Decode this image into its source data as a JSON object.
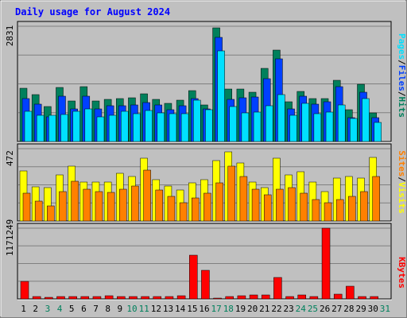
{
  "chart_data": [
    {
      "type": "bar",
      "title": "Daily usage for August 2024",
      "max_label": "2831",
      "ylim": [
        0,
        2831
      ],
      "grid": true,
      "legend": {
        "placement": "right-vertical",
        "items": [
          {
            "label": "Hits",
            "color": "#00805c"
          },
          {
            "label": "/",
            "color": "#000000"
          },
          {
            "label": "Files",
            "color": "#0040ff"
          },
          {
            "label": "/",
            "color": "#000000"
          },
          {
            "label": "Pages",
            "color": "#00e0ff"
          }
        ]
      },
      "categories": [
        "1",
        "2",
        "3",
        "4",
        "5",
        "6",
        "7",
        "8",
        "9",
        "10",
        "11",
        "12",
        "13",
        "14",
        "15",
        "16",
        "17",
        "18",
        "19",
        "20",
        "21",
        "22",
        "23",
        "24",
        "25",
        "26",
        "27",
        "28",
        "29",
        "30",
        "31"
      ],
      "series": [
        {
          "name": "Hits",
          "color": "#00805c",
          "values": [
            1300,
            1150,
            850,
            1330,
            1000,
            1350,
            1000,
            1030,
            1060,
            1080,
            1170,
            1030,
            930,
            1010,
            1240,
            900,
            2790,
            1290,
            1290,
            1210,
            1800,
            2240,
            970,
            1230,
            1060,
            1050,
            1500,
            780,
            1400,
            700,
            0
          ]
        },
        {
          "name": "Files",
          "color": "#0040ff",
          "values": [
            1050,
            910,
            600,
            1120,
            810,
            1120,
            810,
            870,
            880,
            900,
            950,
            900,
            790,
            880,
            1050,
            810,
            2550,
            1040,
            1080,
            1100,
            1550,
            2030,
            800,
            1110,
            910,
            980,
            1350,
            580,
            1210,
            590,
            0
          ]
        },
        {
          "name": "Pages",
          "color": "#00e0ff",
          "values": [
            750,
            640,
            640,
            670,
            740,
            800,
            600,
            650,
            750,
            690,
            760,
            700,
            680,
            680,
            1020,
            780,
            2220,
            850,
            700,
            720,
            880,
            1160,
            640,
            940,
            690,
            730,
            900,
            560,
            1050,
            470,
            0
          ]
        }
      ]
    },
    {
      "type": "bar",
      "max_label": "472",
      "ylim": [
        0,
        472
      ],
      "grid": true,
      "legend": {
        "placement": "right-vertical",
        "items": [
          {
            "label": "Visits",
            "color": "#ffff00"
          },
          {
            "label": "/",
            "color": "#000000"
          },
          {
            "label": "Sites",
            "color": "#ff8000"
          }
        ]
      },
      "categories": [
        "1",
        "2",
        "3",
        "4",
        "5",
        "6",
        "7",
        "8",
        "9",
        "10",
        "11",
        "12",
        "13",
        "14",
        "15",
        "16",
        "17",
        "18",
        "19",
        "20",
        "21",
        "22",
        "23",
        "24",
        "25",
        "26",
        "27",
        "28",
        "29",
        "30",
        "31"
      ],
      "series": [
        {
          "name": "Visits",
          "color": "#ffff00",
          "values": [
            328,
            224,
            220,
            300,
            360,
            252,
            256,
            256,
            310,
            292,
            410,
            272,
            226,
            200,
            248,
            272,
            394,
            450,
            380,
            256,
            220,
            410,
            300,
            320,
            256,
            190,
            280,
            290,
            280,
            415,
            0
          ]
        },
        {
          "name": "Sites",
          "color": "#ff8000",
          "values": [
            180,
            128,
            100,
            190,
            260,
            210,
            190,
            186,
            210,
            226,
            330,
            200,
            160,
            118,
            150,
            180,
            250,
            360,
            290,
            210,
            170,
            210,
            220,
            180,
            138,
            120,
            140,
            160,
            190,
            290,
            0
          ]
        }
      ]
    },
    {
      "type": "bar",
      "max_label": "1171249",
      "ylim": [
        0,
        1171249
      ],
      "grid": true,
      "legend": {
        "placement": "right-vertical",
        "items": [
          {
            "label": "KBytes",
            "color": "#ff0000"
          }
        ]
      },
      "categories": [
        "1",
        "2",
        "3",
        "4",
        "5",
        "6",
        "7",
        "8",
        "9",
        "10",
        "11",
        "12",
        "13",
        "14",
        "15",
        "16",
        "17",
        "18",
        "19",
        "20",
        "21",
        "22",
        "23",
        "24",
        "25",
        "26",
        "27",
        "28",
        "29",
        "30",
        "31"
      ],
      "series": [
        {
          "name": "KBytes",
          "color": "#ff0000",
          "values": [
            290000,
            35000,
            30000,
            35000,
            40000,
            35000,
            40000,
            50000,
            45000,
            35000,
            45000,
            35000,
            40000,
            50000,
            730000,
            470000,
            15000,
            45000,
            50000,
            60000,
            60000,
            350000,
            45000,
            60000,
            35000,
            1171249,
            85000,
            210000,
            45000,
            40000,
            0
          ]
        }
      ]
    }
  ],
  "x_axis": {
    "labels": [
      "1",
      "2",
      "3",
      "4",
      "5",
      "6",
      "7",
      "8",
      "9",
      "10",
      "11",
      "12",
      "13",
      "14",
      "15",
      "16",
      "17",
      "18",
      "19",
      "20",
      "21",
      "22",
      "23",
      "24",
      "25",
      "26",
      "27",
      "28",
      "29",
      "30",
      "31"
    ],
    "weekend_days": [
      "3",
      "4",
      "10",
      "11",
      "17",
      "18",
      "24",
      "25",
      "31"
    ],
    "weekday_color": "#000000",
    "weekend_color": "#00805c"
  },
  "colors": {
    "background": "#c0c0c0",
    "plot_background": "#c0c0c0",
    "title": "#0000ff",
    "grid": "#808080"
  }
}
